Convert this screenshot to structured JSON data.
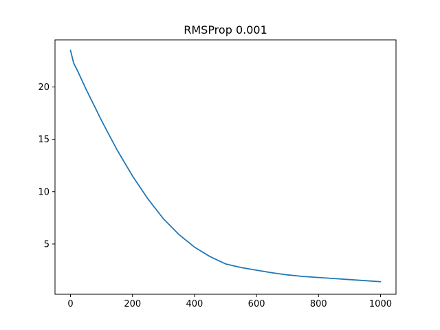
{
  "chart_data": {
    "type": "line",
    "title": "RMSProp 0.001",
    "xlabel": "",
    "ylabel": "",
    "xlim": [
      -50,
      1050
    ],
    "ylim": [
      0.2,
      24.5
    ],
    "x_ticks": [
      0,
      200,
      400,
      600,
      800,
      1000
    ],
    "y_ticks": [
      5,
      10,
      15,
      20
    ],
    "grid": false,
    "legend": "none",
    "series": [
      {
        "color": "#1f77b4",
        "x": [
          0,
          10,
          25,
          50,
          75,
          100,
          150,
          200,
          250,
          300,
          350,
          400,
          450,
          500,
          550,
          600,
          650,
          700,
          750,
          800,
          850,
          900,
          950,
          1000
        ],
        "y": [
          23.5,
          22.3,
          21.4,
          19.8,
          18.3,
          16.8,
          14.0,
          11.5,
          9.3,
          7.4,
          5.9,
          4.7,
          3.8,
          3.1,
          2.75,
          2.5,
          2.25,
          2.05,
          1.9,
          1.8,
          1.7,
          1.6,
          1.5,
          1.4
        ]
      }
    ]
  }
}
